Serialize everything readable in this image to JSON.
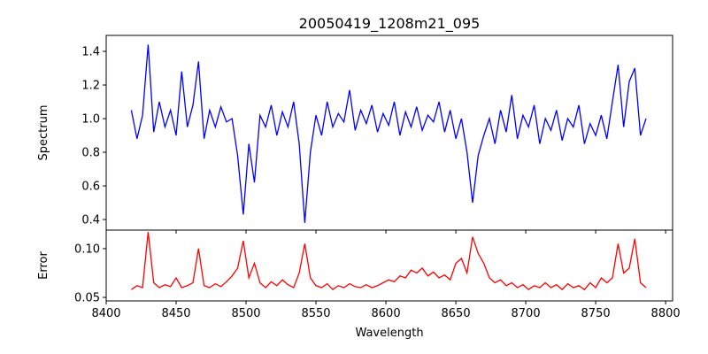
{
  "chart_data": [
    {
      "type": "line",
      "title": "20050419_1208m21_095",
      "xlabel": "",
      "ylabel": "Spectrum",
      "xlim": [
        8400,
        8805
      ],
      "ylim": [
        0.337,
        1.495
      ],
      "yticks": [
        0.4,
        0.6,
        0.8,
        1.0,
        1.2,
        1.4
      ],
      "ytick_labels": [
        "0.4",
        "0.6",
        "0.8",
        "1.0",
        "1.2",
        "1.4"
      ],
      "color": "#0000ff",
      "x_start": 8418,
      "x_step": 4,
      "values": [
        1.05,
        0.88,
        1.02,
        1.44,
        0.92,
        1.1,
        0.95,
        1.05,
        0.9,
        1.28,
        0.95,
        1.08,
        1.34,
        0.88,
        1.05,
        0.95,
        1.07,
        0.98,
        1.0,
        0.78,
        0.43,
        0.85,
        0.62,
        1.02,
        0.95,
        1.08,
        0.9,
        1.04,
        0.95,
        1.1,
        0.85,
        0.38,
        0.8,
        1.02,
        0.9,
        1.1,
        0.95,
        1.03,
        0.98,
        1.17,
        0.93,
        1.05,
        0.97,
        1.08,
        0.92,
        1.03,
        0.96,
        1.1,
        0.9,
        1.04,
        0.95,
        1.07,
        0.93,
        1.02,
        0.98,
        1.1,
        0.92,
        1.05,
        0.88,
        1.0,
        0.8,
        0.5,
        0.78,
        0.9,
        1.0,
        0.85,
        1.05,
        0.92,
        1.14,
        0.88,
        1.02,
        0.95,
        1.08,
        0.85,
        1.0,
        0.93,
        1.05,
        0.87,
        1.0,
        0.95,
        1.08,
        0.85,
        0.97,
        0.9,
        1.02,
        0.88,
        1.1,
        1.32,
        0.95,
        1.22,
        1.3,
        0.9,
        1.0
      ]
    },
    {
      "type": "line",
      "xlabel": "Wavelength",
      "ylabel": "Error",
      "xlim": [
        8400,
        8805
      ],
      "ylim": [
        0.0464,
        0.119
      ],
      "xticks": [
        8400,
        8450,
        8500,
        8550,
        8600,
        8650,
        8700,
        8750,
        8800
      ],
      "xtick_labels": [
        "8400",
        "8450",
        "8500",
        "8550",
        "8600",
        "8650",
        "8700",
        "8750",
        "8800"
      ],
      "yticks": [
        0.05,
        0.1
      ],
      "ytick_labels": [
        "0.05",
        "0.10"
      ],
      "color": "#ff0000",
      "x_start": 8418,
      "x_step": 4,
      "values": [
        0.058,
        0.062,
        0.06,
        0.117,
        0.065,
        0.06,
        0.063,
        0.061,
        0.07,
        0.06,
        0.062,
        0.065,
        0.1,
        0.062,
        0.06,
        0.064,
        0.061,
        0.066,
        0.072,
        0.08,
        0.108,
        0.07,
        0.085,
        0.065,
        0.06,
        0.066,
        0.062,
        0.068,
        0.063,
        0.06,
        0.075,
        0.105,
        0.07,
        0.062,
        0.06,
        0.064,
        0.058,
        0.062,
        0.06,
        0.064,
        0.061,
        0.06,
        0.063,
        0.06,
        0.062,
        0.065,
        0.068,
        0.066,
        0.072,
        0.07,
        0.078,
        0.075,
        0.08,
        0.072,
        0.076,
        0.07,
        0.073,
        0.068,
        0.085,
        0.09,
        0.075,
        0.112,
        0.095,
        0.085,
        0.07,
        0.065,
        0.068,
        0.062,
        0.065,
        0.06,
        0.063,
        0.058,
        0.062,
        0.06,
        0.065,
        0.06,
        0.063,
        0.058,
        0.064,
        0.06,
        0.062,
        0.058,
        0.065,
        0.06,
        0.07,
        0.065,
        0.07,
        0.105,
        0.075,
        0.08,
        0.11,
        0.065,
        0.06
      ]
    }
  ]
}
